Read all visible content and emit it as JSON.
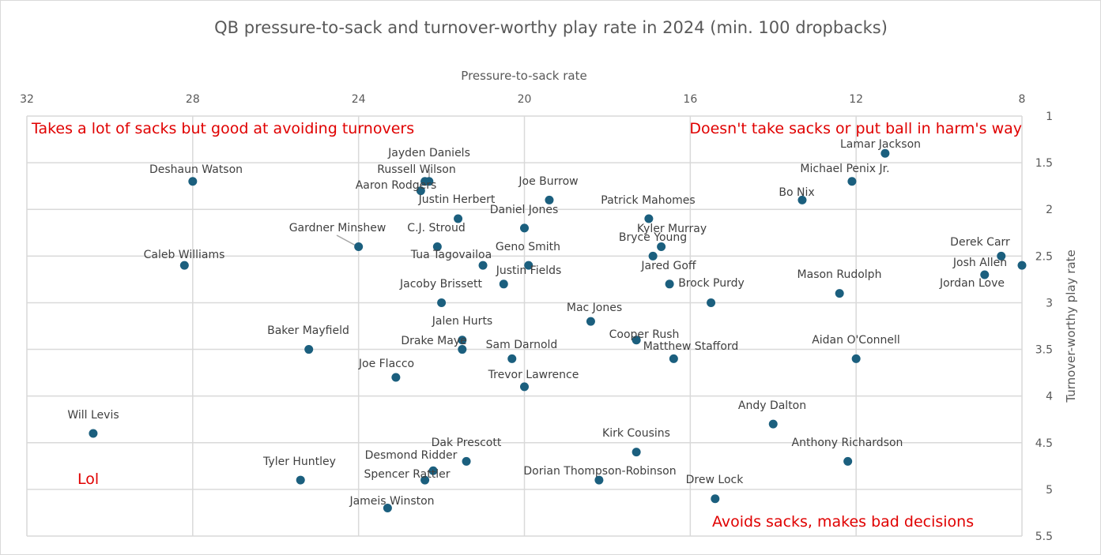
{
  "chart_data": {
    "type": "scatter",
    "title": "QB pressure-to-sack and turnover-worthy play rate in 2024 (min. 100 dropbacks)",
    "xlabel": "Pressure-to-sack rate",
    "ylabel": "Turnover-worthy play rate",
    "xlim": [
      32,
      8
    ],
    "x_reversed": true,
    "x_axis_position": "top",
    "x_ticks": [
      "32",
      "28",
      "24",
      "20",
      "16",
      "12",
      "8"
    ],
    "ylim": [
      1,
      5.5
    ],
    "y_reversed": true,
    "y_axis_position": "right",
    "y_ticks": [
      "1",
      "1.5",
      "2",
      "2.5",
      "3",
      "3.5",
      "4",
      "4.5",
      "5",
      "5.5"
    ],
    "grid": true,
    "marker_color": "#1b5f7e",
    "annotation_color": "#e00000",
    "annotations": [
      {
        "text": "Takes a lot of sacks but good at avoiding turnovers",
        "position": "top-left"
      },
      {
        "text": "Doesn't take sacks or put ball in harm's way",
        "position": "top-right"
      },
      {
        "text": "Lol",
        "position": "bottom-left"
      },
      {
        "text": "Avoids sacks, makes bad decisions",
        "position": "bottom-right"
      }
    ],
    "points": [
      {
        "label": "Lamar Jackson",
        "x": 11.3,
        "y": 1.4
      },
      {
        "label": "Michael Penix Jr.",
        "x": 12.1,
        "y": 1.7
      },
      {
        "label": "Bo Nix",
        "x": 13.3,
        "y": 1.9
      },
      {
        "label": "Derek Carr",
        "x": 8.5,
        "y": 2.5
      },
      {
        "label": "Josh Allen",
        "x": 8.0,
        "y": 2.6
      },
      {
        "label": "Jordan Love",
        "x": 8.9,
        "y": 2.7
      },
      {
        "label": "Mason Rudolph",
        "x": 12.4,
        "y": 2.9
      },
      {
        "label": "Aidan O'Connell",
        "x": 12.0,
        "y": 3.6
      },
      {
        "label": "Andy Dalton",
        "x": 14.0,
        "y": 4.3
      },
      {
        "label": "Anthony Richardson",
        "x": 12.2,
        "y": 4.7
      },
      {
        "label": "Drew Lock",
        "x": 15.4,
        "y": 5.1
      },
      {
        "label": "Brock Purdy",
        "x": 15.5,
        "y": 3.0
      },
      {
        "label": "Kirk Cousins",
        "x": 17.3,
        "y": 4.6
      },
      {
        "label": "Dorian Thompson-Robinson",
        "x": 18.2,
        "y": 4.9
      },
      {
        "label": "Matthew Stafford",
        "x": 16.4,
        "y": 3.6
      },
      {
        "label": "Cooper Rush",
        "x": 17.3,
        "y": 3.4
      },
      {
        "label": "Jared Goff",
        "x": 16.5,
        "y": 2.8
      },
      {
        "label": "Kyler Murray",
        "x": 16.7,
        "y": 2.4
      },
      {
        "label": "Bryce Young",
        "x": 16.9,
        "y": 2.5
      },
      {
        "label": "Patrick Mahomes",
        "x": 17.0,
        "y": 2.1
      },
      {
        "label": "Mac Jones",
        "x": 18.4,
        "y": 3.2
      },
      {
        "label": "Joe Burrow",
        "x": 19.4,
        "y": 1.9
      },
      {
        "label": "Daniel Jones",
        "x": 20.0,
        "y": 2.2
      },
      {
        "label": "Geno Smith",
        "x": 19.9,
        "y": 2.6
      },
      {
        "label": "Justin Fields",
        "x": 20.5,
        "y": 2.8
      },
      {
        "label": "Tua Tagovailoa",
        "x": 21.0,
        "y": 2.6
      },
      {
        "label": "Sam Darnold",
        "x": 20.3,
        "y": 3.6
      },
      {
        "label": "Trevor Lawrence",
        "x": 20.0,
        "y": 3.9
      },
      {
        "label": "Justin Herbert",
        "x": 21.6,
        "y": 2.1
      },
      {
        "label": "C.J. Stroud",
        "x": 22.1,
        "y": 2.4
      },
      {
        "label": "Jacoby Brissett",
        "x": 22.0,
        "y": 3.0
      },
      {
        "label": "Jalen Hurts",
        "x": 21.5,
        "y": 3.4
      },
      {
        "label": "Drake Maye",
        "x": 21.5,
        "y": 3.5
      },
      {
        "label": "Jayden Daniels",
        "x": 22.3,
        "y": 1.7
      },
      {
        "label": "Russell Wilson",
        "x": 22.4,
        "y": 1.7
      },
      {
        "label": "Aaron Rodgers",
        "x": 22.5,
        "y": 1.8
      },
      {
        "label": "Gardner Minshew",
        "x": 24.0,
        "y": 2.4
      },
      {
        "label": "Deshaun Watson",
        "x": 28.0,
        "y": 1.7
      },
      {
        "label": "Caleb Williams",
        "x": 28.2,
        "y": 2.6
      },
      {
        "label": "Baker Mayfield",
        "x": 25.2,
        "y": 3.5
      },
      {
        "label": "Joe Flacco",
        "x": 23.1,
        "y": 3.8
      },
      {
        "label": "Will Levis",
        "x": 30.4,
        "y": 4.4
      },
      {
        "label": "Tyler Huntley",
        "x": 25.4,
        "y": 4.9
      },
      {
        "label": "Desmond Ridder",
        "x": 22.2,
        "y": 4.8
      },
      {
        "label": "Spencer Rattler",
        "x": 22.4,
        "y": 4.9
      },
      {
        "label": "Dak Prescott",
        "x": 21.4,
        "y": 4.7
      },
      {
        "label": "Jameis Winston",
        "x": 23.3,
        "y": 5.2
      }
    ]
  }
}
